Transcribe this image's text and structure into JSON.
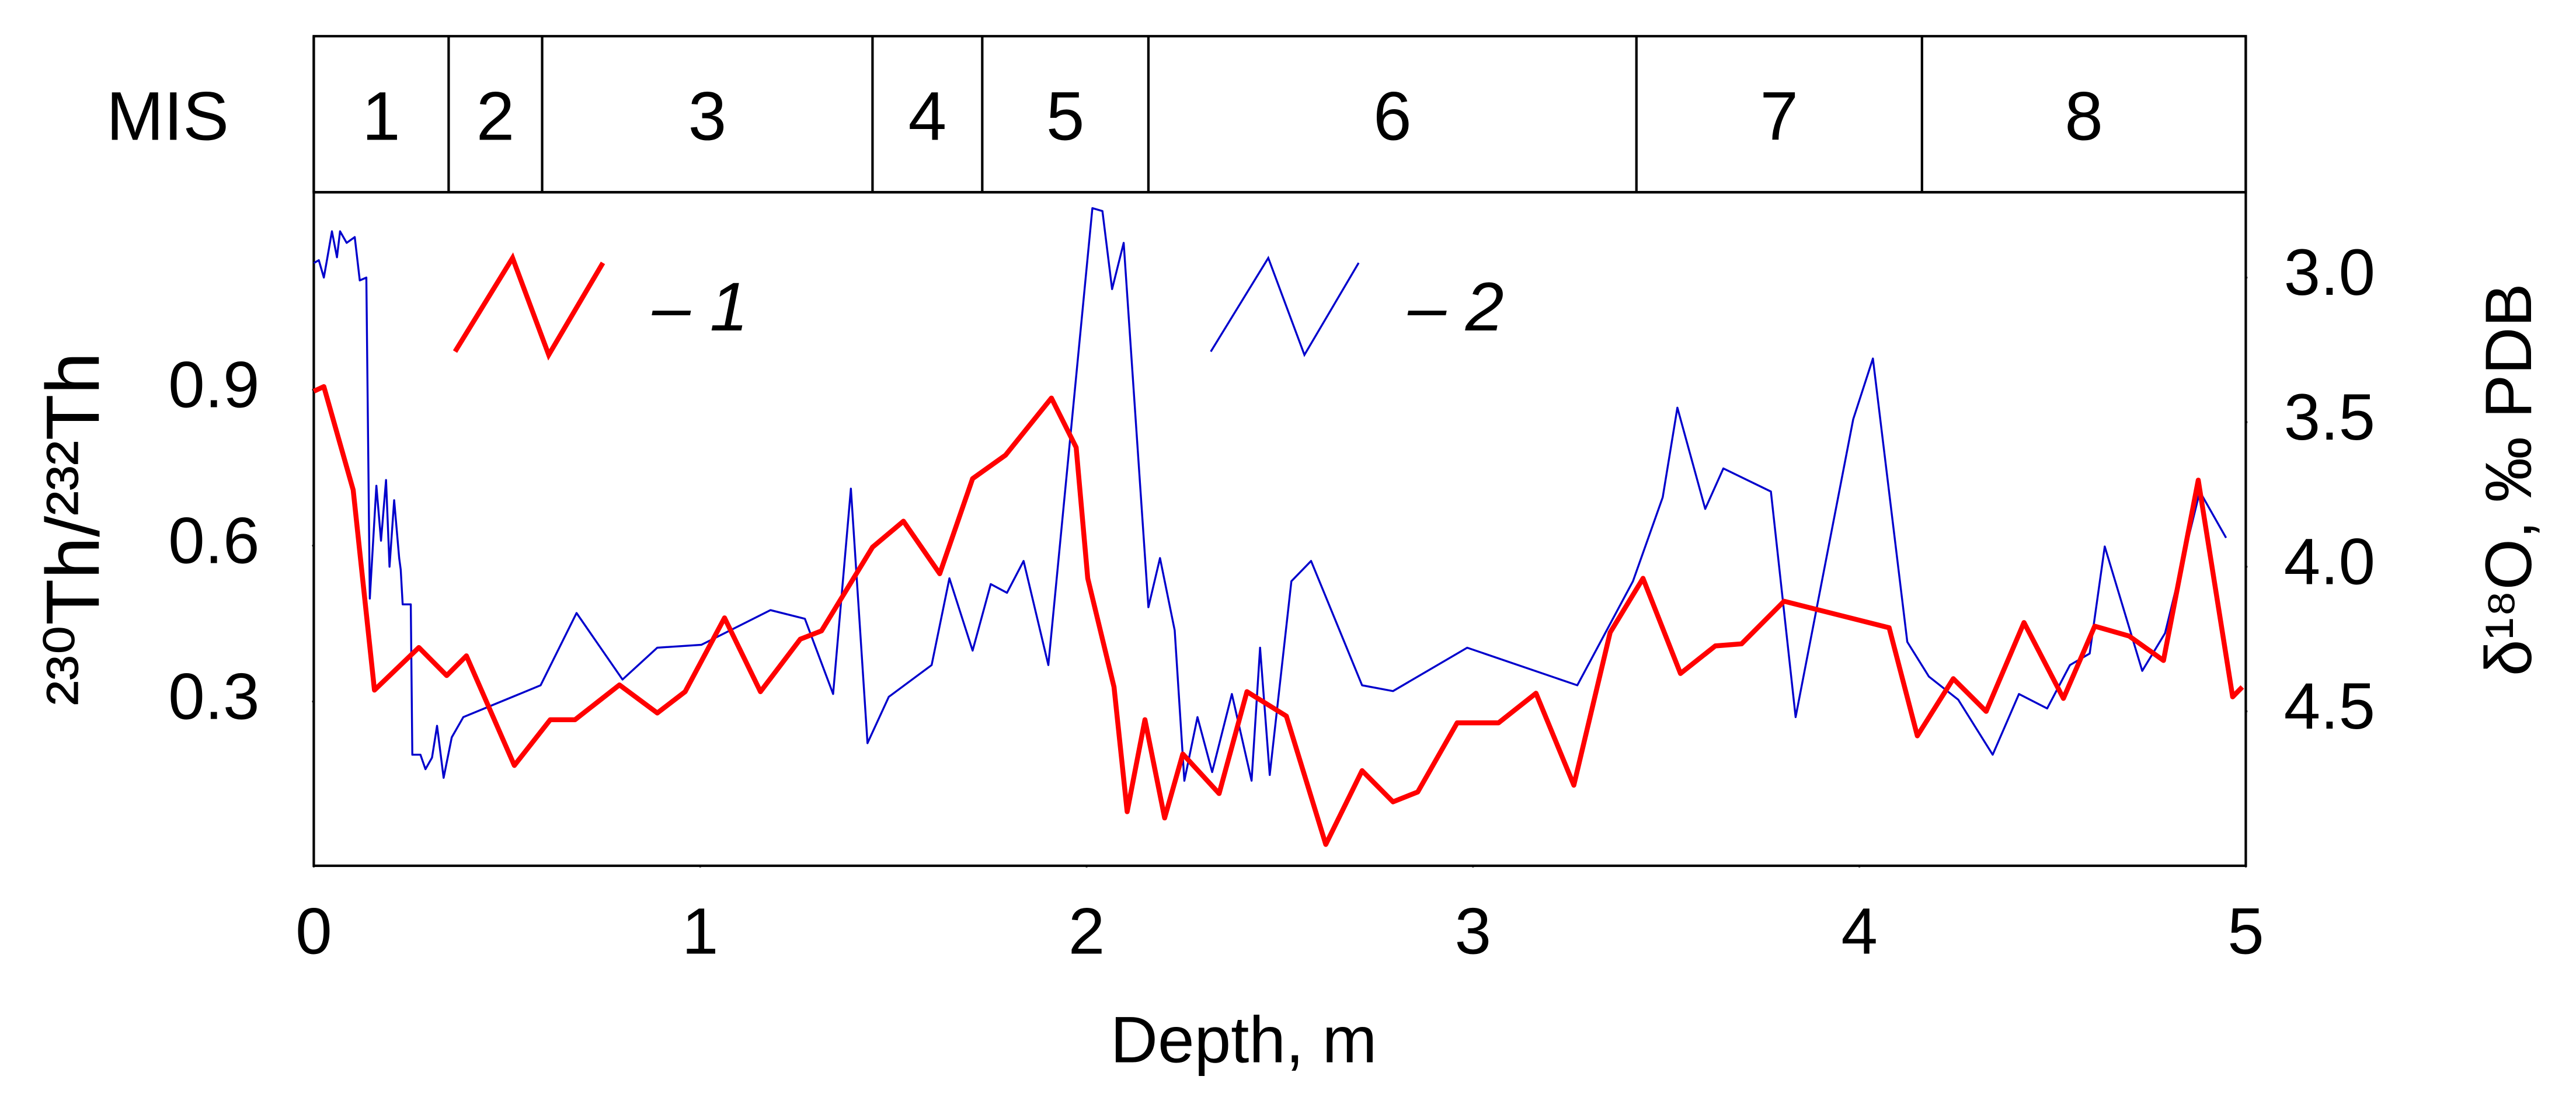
{
  "chart_data": {
    "type": "line",
    "x_label": "Depth, m",
    "y_label": "²³⁰Th/²³²Th",
    "y2_label": "δ¹⁸O, ‰ PDB",
    "xlim": [
      0,
      5
    ],
    "xticks": [
      0,
      1,
      2,
      3,
      4,
      5
    ],
    "ylim": [
      -0.016,
      1.28
    ],
    "yticks": [
      0.3,
      0.6,
      0.9
    ],
    "y2lim": [
      5.034,
      2.705
    ],
    "y2ticks": [
      {
        "value": 3,
        "label": "3.0"
      },
      3.5,
      {
        "value": 4,
        "label": "4.0"
      },
      4.5
    ],
    "grid": false,
    "legend": "top-left",
    "mis": {
      "label": "MIS",
      "stages": [
        "1",
        "2",
        "3",
        "4",
        "5",
        "6",
        "7",
        "8"
      ],
      "boundaries": [
        0,
        0.349,
        0.591,
        1.446,
        1.73,
        2.16,
        3.423,
        4.162,
        5
      ]
    },
    "series": [
      {
        "name": "– 1",
        "color": "#ff0000",
        "axis": "y",
        "x": [
          0,
          0.026,
          0.102,
          0.157,
          0.272,
          0.344,
          0.395,
          0.519,
          0.612,
          0.676,
          0.791,
          0.889,
          0.961,
          1.063,
          1.156,
          1.259,
          1.314,
          1.446,
          1.526,
          1.62,
          1.705,
          1.79,
          1.909,
          1.973,
          2.003,
          2.071,
          2.105,
          2.151,
          2.202,
          2.249,
          2.343,
          2.415,
          2.517,
          2.619,
          2.713,
          2.793,
          2.857,
          2.959,
          3.066,
          3.163,
          3.261,
          3.355,
          3.44,
          3.537,
          3.627,
          3.695,
          3.805,
          4.077,
          4.15,
          4.243,
          4.328,
          4.426,
          4.528,
          4.609,
          4.698,
          4.787,
          4.877,
          4.966,
          4.991
        ],
        "values": [
          0.897,
          0.906,
          0.707,
          0.322,
          0.404,
          0.35,
          0.388,
          0.177,
          0.265,
          0.265,
          0.332,
          0.278,
          0.319,
          0.461,
          0.319,
          0.42,
          0.436,
          0.597,
          0.647,
          0.546,
          0.729,
          0.774,
          0.884,
          0.789,
          0.537,
          0.328,
          0.088,
          0.265,
          0.076,
          0.199,
          0.123,
          0.319,
          0.272,
          0.025,
          0.167,
          0.107,
          0.126,
          0.259,
          0.259,
          0.316,
          0.139,
          0.433,
          0.537,
          0.354,
          0.407,
          0.411,
          0.493,
          0.442,
          0.234,
          0.344,
          0.281,
          0.452,
          0.306,
          0.445,
          0.426,
          0.379,
          0.726,
          0.309,
          0.328
        ]
      },
      {
        "name": "– 2",
        "color": "#0000cc",
        "axis": "y2",
        "x": [
          0,
          0.013,
          0.026,
          0.034,
          0.047,
          0.06,
          0.068,
          0.085,
          0.106,
          0.119,
          0.136,
          0.145,
          0.162,
          0.174,
          0.187,
          0.196,
          0.208,
          0.221,
          0.225,
          0.23,
          0.251,
          0.255,
          0.276,
          0.289,
          0.306,
          0.319,
          0.336,
          0.357,
          0.387,
          0.587,
          0.68,
          0.799,
          0.889,
          1.003,
          1.182,
          1.271,
          1.344,
          1.39,
          1.433,
          1.488,
          1.599,
          1.645,
          1.705,
          1.752,
          1.794,
          1.837,
          1.901,
          2.015,
          2.041,
          2.066,
          2.096,
          2.16,
          2.19,
          2.228,
          2.253,
          2.287,
          2.325,
          2.376,
          2.427,
          2.449,
          2.474,
          2.53,
          2.581,
          2.713,
          2.793,
          2.985,
          3.27,
          3.414,
          3.491,
          3.529,
          3.601,
          3.648,
          3.771,
          3.835,
          3.984,
          4.035,
          4.124,
          4.18,
          4.256,
          4.345,
          4.413,
          4.486,
          4.545,
          4.596,
          4.635,
          4.732,
          4.791,
          4.881,
          4.949
        ],
        "values": [
          2.95,
          2.94,
          3.0,
          2.94,
          2.84,
          2.93,
          2.84,
          2.88,
          2.86,
          3.01,
          3.0,
          4.11,
          3.72,
          3.91,
          3.7,
          4.0,
          3.77,
          3.97,
          4.01,
          4.13,
          4.13,
          4.65,
          4.65,
          4.7,
          4.66,
          4.55,
          4.73,
          4.59,
          4.52,
          4.41,
          4.16,
          4.39,
          4.28,
          4.27,
          4.15,
          4.18,
          4.44,
          3.73,
          4.61,
          4.45,
          4.34,
          4.04,
          4.29,
          4.06,
          4.09,
          3.98,
          4.34,
          2.76,
          2.77,
          3.04,
          2.88,
          4.14,
          3.97,
          4.22,
          4.74,
          4.52,
          4.71,
          4.44,
          4.74,
          4.28,
          4.72,
          4.05,
          3.98,
          4.41,
          4.43,
          4.28,
          4.41,
          4.05,
          3.76,
          3.45,
          3.8,
          3.66,
          3.74,
          4.52,
          3.49,
          3.28,
          4.26,
          4.38,
          4.46,
          4.65,
          4.44,
          4.49,
          4.34,
          4.3,
          3.93,
          4.36,
          4.23,
          3.74,
          3.9
        ]
      }
    ]
  }
}
